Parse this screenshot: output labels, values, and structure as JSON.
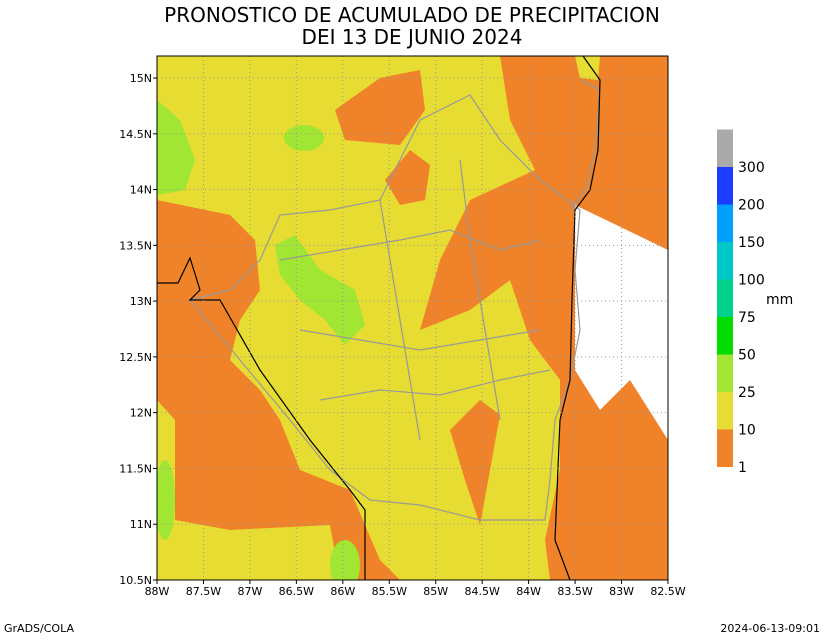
{
  "map": {
    "title": "PRONOSTICO DE ACUMULADO DE PRECIPITACION",
    "subtitle": "DEI 13 DE JUNIO 2024",
    "x_labels": [
      "88W",
      "87.5W",
      "87W",
      "86.5W",
      "86W",
      "85.5W",
      "85W",
      "84.5W",
      "84W",
      "83.5W",
      "83W",
      "82.5W"
    ],
    "y_labels": [
      "10.5N",
      "11N",
      "11.5N",
      "12N",
      "12.5N",
      "13N",
      "13.5N",
      "14N",
      "14.5N",
      "15N"
    ],
    "legend": {
      "unit": "mm",
      "labels": [
        1,
        10,
        25,
        50,
        75,
        100,
        150,
        200,
        300
      ],
      "colors": [
        "#f0822a",
        "#e6dc32",
        "#a0e632",
        "#00dc00",
        "#00d28c",
        "#00c8c8",
        "#00a0ff",
        "#1e3cff",
        "#aaaaaa"
      ]
    },
    "footer_left": "GrADS/COLA",
    "footer_right": "2024-06-13-09:01"
  }
}
